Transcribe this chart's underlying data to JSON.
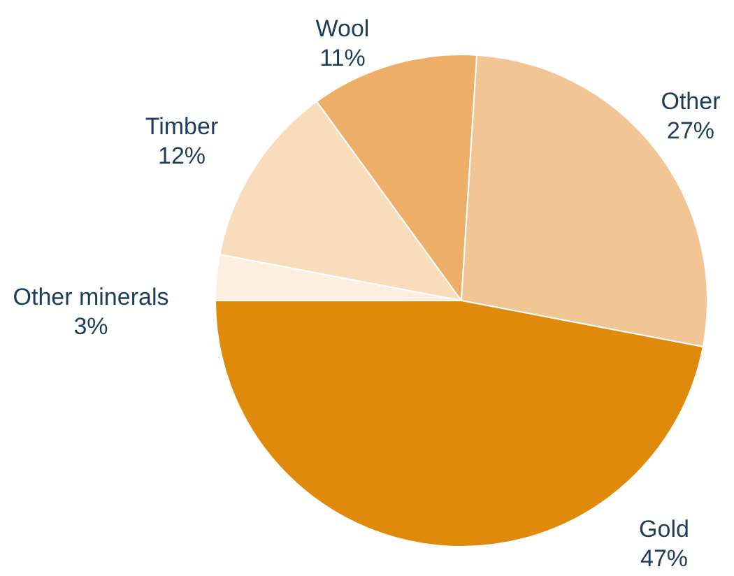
{
  "chart_data": {
    "type": "pie",
    "categories": [
      "Other minerals",
      "Timber",
      "Wool",
      "Other",
      "Gold"
    ],
    "values": [
      3,
      12,
      11,
      27,
      47
    ],
    "value_labels": [
      "3%",
      "12%",
      "11%",
      "27%",
      "47%"
    ],
    "colors": [
      "#fdeee0",
      "#f9dcbc",
      "#edae68",
      "#f2c694",
      "#e08a0b"
    ]
  }
}
